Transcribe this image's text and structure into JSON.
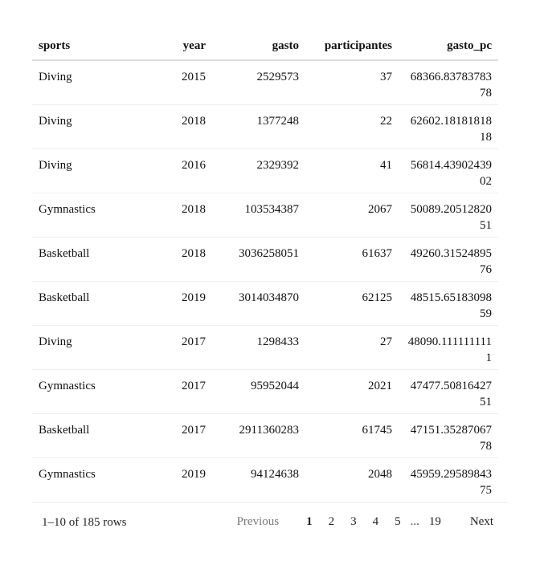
{
  "table": {
    "columns": [
      "sports",
      "year",
      "gasto",
      "participantes",
      "gasto_pc"
    ],
    "rows": [
      {
        "sports": "Diving",
        "year": "2015",
        "gasto": "2529573",
        "participantes": "37",
        "gasto_pc": "68366.8378378378"
      },
      {
        "sports": "Diving",
        "year": "2018",
        "gasto": "1377248",
        "participantes": "22",
        "gasto_pc": "62602.1818181818"
      },
      {
        "sports": "Diving",
        "year": "2016",
        "gasto": "2329392",
        "participantes": "41",
        "gasto_pc": "56814.4390243902"
      },
      {
        "sports": "Gymnastics",
        "year": "2018",
        "gasto": "103534387",
        "participantes": "2067",
        "gasto_pc": "50089.2051282051"
      },
      {
        "sports": "Basketball",
        "year": "2018",
        "gasto": "3036258051",
        "participantes": "61637",
        "gasto_pc": "49260.3152489576"
      },
      {
        "sports": "Basketball",
        "year": "2019",
        "gasto": "3014034870",
        "participantes": "62125",
        "gasto_pc": "48515.6518309859"
      },
      {
        "sports": "Diving",
        "year": "2017",
        "gasto": "1298433",
        "participantes": "27",
        "gasto_pc": "48090.1111111111"
      },
      {
        "sports": "Gymnastics",
        "year": "2017",
        "gasto": "95952044",
        "participantes": "2021",
        "gasto_pc": "47477.5081642751"
      },
      {
        "sports": "Basketball",
        "year": "2017",
        "gasto": "2911360283",
        "participantes": "61745",
        "gasto_pc": "47151.3528706778"
      },
      {
        "sports": "Gymnastics",
        "year": "2019",
        "gasto": "94124638",
        "participantes": "2048",
        "gasto_pc": "45959.2958984375"
      }
    ]
  },
  "footer": {
    "row_info": "1–10 of 185 rows",
    "previous_label": "Previous",
    "next_label": "Next",
    "pages": [
      "1",
      "2",
      "3",
      "4",
      "5"
    ],
    "ellipsis": "...",
    "last_page": "19",
    "current_page": "1"
  }
}
